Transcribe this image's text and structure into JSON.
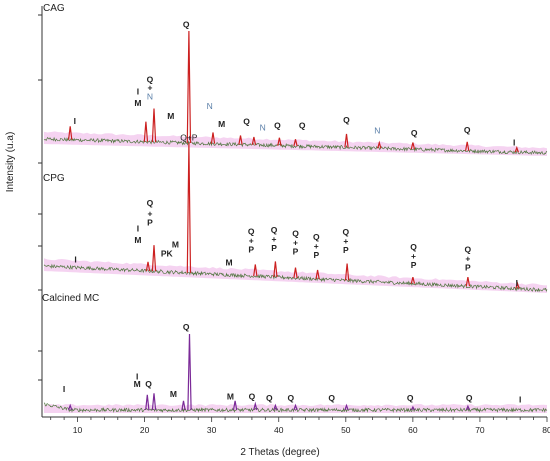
{
  "chart_data": {
    "type": "line",
    "xlabel": "2 Thetas (degree)",
    "ylabel": "Intensity (u.a)",
    "xlim": [
      5,
      80
    ],
    "xticks": [
      10,
      20,
      30,
      40,
      50,
      60,
      70,
      80
    ],
    "grid": false,
    "colors": {
      "trace_noise": "#3d6a2a",
      "trace_peak": "#cc2020",
      "accent": "#7b2a98",
      "band": "#f2c8ee",
      "axis": "#333333"
    },
    "panels": [
      {
        "name": "CAG",
        "label": "CAG",
        "baseline_rel": 0.12,
        "peak_color": "#cc2020",
        "peaks": [
          {
            "x": 8.9,
            "h": 0.12
          },
          {
            "x": 20.2,
            "h": 0.18
          },
          {
            "x": 21.4,
            "h": 0.3
          },
          {
            "x": 26.6,
            "h": 1.0
          },
          {
            "x": 30.2,
            "h": 0.1
          },
          {
            "x": 34.3,
            "h": 0.08
          },
          {
            "x": 36.3,
            "h": 0.07
          },
          {
            "x": 40.1,
            "h": 0.07
          },
          {
            "x": 42.5,
            "h": 0.06
          },
          {
            "x": 50.1,
            "h": 0.12
          },
          {
            "x": 55.0,
            "h": 0.05
          },
          {
            "x": 60.0,
            "h": 0.06
          },
          {
            "x": 68.1,
            "h": 0.08
          },
          {
            "x": 75.5,
            "h": 0.04
          }
        ],
        "annotations": [
          {
            "x": 9.6,
            "h": 0.14,
            "text": "I",
            "type": "phase"
          },
          {
            "x": 19.0,
            "h": 0.42,
            "text": "I",
            "type": "phase"
          },
          {
            "x": 19.0,
            "h": 0.32,
            "text": "M",
            "type": "phase"
          },
          {
            "x": 20.8,
            "h": 0.53,
            "text": "Q",
            "type": "phase"
          },
          {
            "x": 20.8,
            "h": 0.46,
            "text": "+",
            "type": "phase"
          },
          {
            "x": 20.8,
            "h": 0.38,
            "text": "N",
            "type": "phase-n"
          },
          {
            "x": 26.2,
            "h": 1.03,
            "text": "Q",
            "type": "phase"
          },
          {
            "x": 23.9,
            "h": 0.21,
            "text": "M",
            "type": "phase"
          },
          {
            "x": 29.7,
            "h": 0.31,
            "text": "N",
            "type": "phase-n"
          },
          {
            "x": 31.5,
            "h": 0.15,
            "text": "M",
            "type": "phase"
          },
          {
            "x": 35.2,
            "h": 0.18,
            "text": "Q",
            "type": "phase"
          },
          {
            "x": 37.6,
            "h": 0.13,
            "text": "N",
            "type": "phase-n"
          },
          {
            "x": 39.8,
            "h": 0.15,
            "text": "Q",
            "type": "phase"
          },
          {
            "x": 43.5,
            "h": 0.16,
            "text": "Q",
            "type": "phase"
          },
          {
            "x": 50.1,
            "h": 0.22,
            "text": "Q",
            "type": "phase"
          },
          {
            "x": 54.7,
            "h": 0.13,
            "text": "N",
            "type": "phase-n"
          },
          {
            "x": 60.2,
            "h": 0.12,
            "text": "Q",
            "type": "phase"
          },
          {
            "x": 68.1,
            "h": 0.16,
            "text": "Q",
            "type": "phase"
          },
          {
            "x": 75.1,
            "h": 0.06,
            "text": "I",
            "type": "phase"
          }
        ]
      },
      {
        "name": "CPG",
        "label": "CPG",
        "baseline_rel": 0.12,
        "peak_color": "#cc2020",
        "peaks": [
          {
            "x": 20.5,
            "h": 0.07
          },
          {
            "x": 21.4,
            "h": 0.2
          },
          {
            "x": 26.6,
            "h": 1.0
          },
          {
            "x": 36.5,
            "h": 0.09
          },
          {
            "x": 39.5,
            "h": 0.12
          },
          {
            "x": 42.5,
            "h": 0.08
          },
          {
            "x": 45.8,
            "h": 0.07
          },
          {
            "x": 50.2,
            "h": 0.13
          },
          {
            "x": 60.0,
            "h": 0.05
          },
          {
            "x": 68.2,
            "h": 0.07
          },
          {
            "x": 75.6,
            "h": 0.04
          }
        ],
        "annotations": [
          {
            "x": 9.7,
            "h": 0.04,
            "text": "I",
            "type": "phase"
          },
          {
            "x": 26.6,
            "h": 1.02,
            "text": "Q+P",
            "type": "phase-plain"
          },
          {
            "x": 19.0,
            "h": 0.3,
            "text": "I",
            "type": "phase"
          },
          {
            "x": 19.0,
            "h": 0.21,
            "text": "M",
            "type": "phase"
          },
          {
            "x": 20.8,
            "h": 0.5,
            "text": "Q",
            "type": "phase"
          },
          {
            "x": 20.8,
            "h": 0.42,
            "text": "+",
            "type": "phase"
          },
          {
            "x": 20.8,
            "h": 0.35,
            "text": "P",
            "type": "phase"
          },
          {
            "x": 23.3,
            "h": 0.12,
            "text": "PK",
            "type": "phase"
          },
          {
            "x": 24.6,
            "h": 0.19,
            "text": "M",
            "type": "phase"
          },
          {
            "x": 32.6,
            "h": 0.07,
            "text": "M",
            "type": "phase"
          },
          {
            "x": 35.9,
            "h": 0.32,
            "text": "Q",
            "type": "phase"
          },
          {
            "x": 35.9,
            "h": 0.25,
            "text": "+",
            "type": "phase"
          },
          {
            "x": 35.9,
            "h": 0.18,
            "text": "P",
            "type": "phase"
          },
          {
            "x": 39.3,
            "h": 0.34,
            "text": "Q",
            "type": "phase"
          },
          {
            "x": 39.3,
            "h": 0.27,
            "text": "+",
            "type": "phase"
          },
          {
            "x": 39.3,
            "h": 0.2,
            "text": "P",
            "type": "phase"
          },
          {
            "x": 42.5,
            "h": 0.32,
            "text": "Q",
            "type": "phase"
          },
          {
            "x": 42.5,
            "h": 0.25,
            "text": "+",
            "type": "phase"
          },
          {
            "x": 42.5,
            "h": 0.18,
            "text": "P",
            "type": "phase"
          },
          {
            "x": 45.6,
            "h": 0.3,
            "text": "Q",
            "type": "phase"
          },
          {
            "x": 45.6,
            "h": 0.23,
            "text": "+",
            "type": "phase"
          },
          {
            "x": 45.6,
            "h": 0.16,
            "text": "P",
            "type": "phase"
          },
          {
            "x": 50.0,
            "h": 0.35,
            "text": "Q",
            "type": "phase"
          },
          {
            "x": 50.0,
            "h": 0.28,
            "text": "+",
            "type": "phase"
          },
          {
            "x": 50.0,
            "h": 0.21,
            "text": "P",
            "type": "phase"
          },
          {
            "x": 60.1,
            "h": 0.26,
            "text": "Q",
            "type": "phase"
          },
          {
            "x": 60.1,
            "h": 0.19,
            "text": "+",
            "type": "phase"
          },
          {
            "x": 60.1,
            "h": 0.12,
            "text": "P",
            "type": "phase"
          },
          {
            "x": 68.2,
            "h": 0.26,
            "text": "Q",
            "type": "phase"
          },
          {
            "x": 68.2,
            "h": 0.19,
            "text": "+",
            "type": "phase"
          },
          {
            "x": 68.2,
            "h": 0.12,
            "text": "P",
            "type": "phase"
          },
          {
            "x": 75.5,
            "h": 0.02,
            "text": "I",
            "type": "phase"
          }
        ]
      },
      {
        "name": "Calcined MC",
        "label": "Calcined MC",
        "baseline_rel": 0.0,
        "peak_color": "#7b2a98",
        "peaks": [
          {
            "x": 8.9,
            "h": 0.06
          },
          {
            "x": 20.4,
            "h": 0.2
          },
          {
            "x": 21.4,
            "h": 0.22
          },
          {
            "x": 25.8,
            "h": 0.12
          },
          {
            "x": 26.7,
            "h": 1.0
          },
          {
            "x": 33.5,
            "h": 0.12
          },
          {
            "x": 36.5,
            "h": 0.08
          },
          {
            "x": 39.5,
            "h": 0.06
          },
          {
            "x": 42.5,
            "h": 0.06
          },
          {
            "x": 50.1,
            "h": 0.06
          },
          {
            "x": 60.0,
            "h": 0.04
          },
          {
            "x": 68.2,
            "h": 0.05
          }
        ],
        "annotations": [
          {
            "x": 8.0,
            "h": 0.24,
            "text": "I",
            "type": "phase"
          },
          {
            "x": 18.9,
            "h": 0.4,
            "text": "I",
            "type": "phase"
          },
          {
            "x": 18.9,
            "h": 0.3,
            "text": "M",
            "type": "phase"
          },
          {
            "x": 20.6,
            "h": 0.3,
            "text": "Q",
            "type": "phase"
          },
          {
            "x": 24.3,
            "h": 0.17,
            "text": "M",
            "type": "phase"
          },
          {
            "x": 26.2,
            "h": 1.05,
            "text": "Q",
            "type": "phase"
          },
          {
            "x": 32.8,
            "h": 0.14,
            "text": "M",
            "type": "phase"
          },
          {
            "x": 36.0,
            "h": 0.14,
            "text": "Q",
            "type": "phase"
          },
          {
            "x": 38.6,
            "h": 0.12,
            "text": "Q",
            "type": "phase"
          },
          {
            "x": 41.8,
            "h": 0.12,
            "text": "Q",
            "type": "phase"
          },
          {
            "x": 47.9,
            "h": 0.12,
            "text": "Q",
            "type": "phase"
          },
          {
            "x": 59.6,
            "h": 0.12,
            "text": "Q",
            "type": "phase"
          },
          {
            "x": 68.4,
            "h": 0.12,
            "text": "Q",
            "type": "phase"
          },
          {
            "x": 76.0,
            "h": 0.1,
            "text": "I",
            "type": "phase"
          }
        ]
      }
    ]
  }
}
